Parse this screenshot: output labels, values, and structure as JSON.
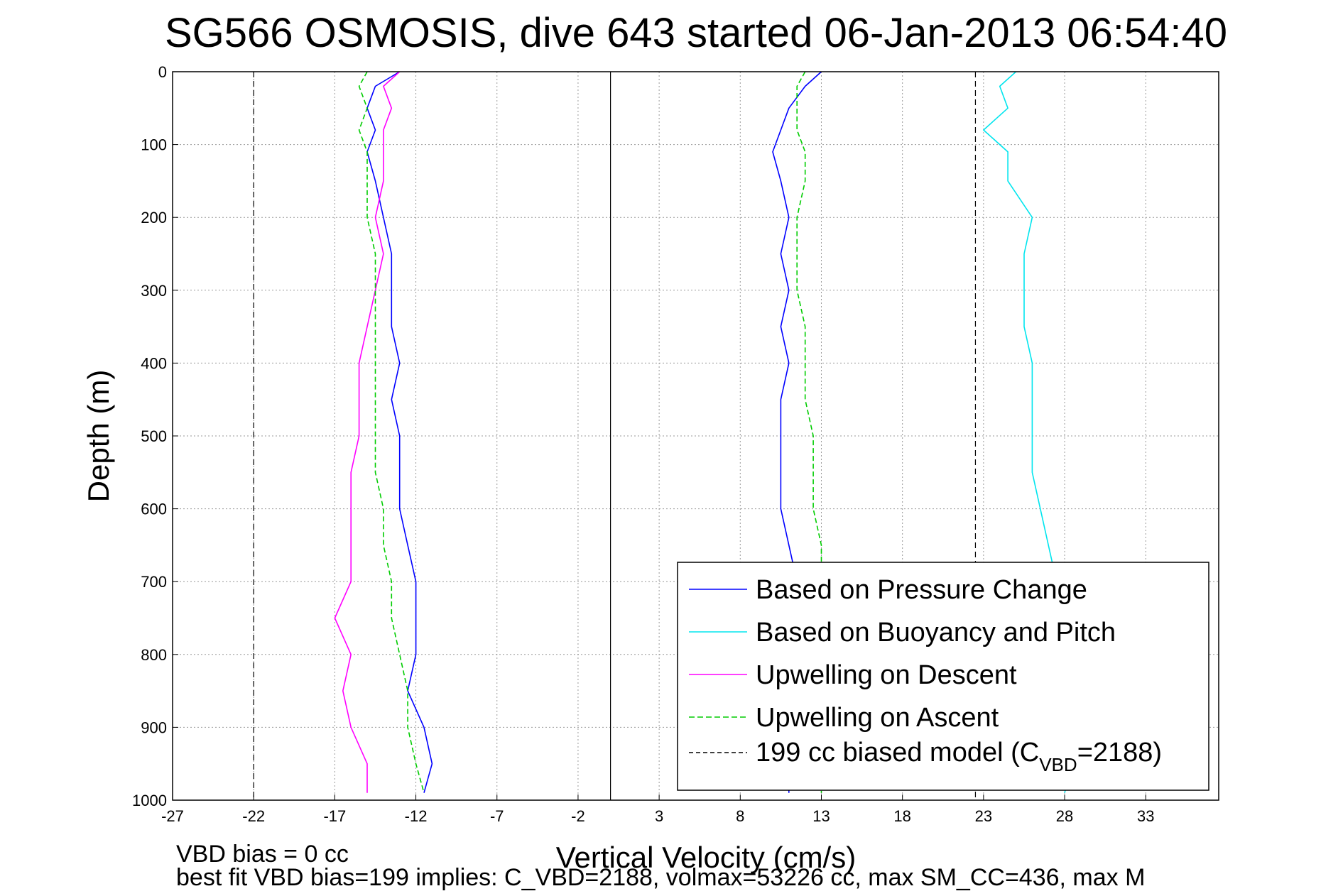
{
  "chart_data": {
    "type": "line",
    "title": "SG566 OSMOSIS, dive 643 started 06-Jan-2013 06:54:40",
    "xlabel": "Vertical Velocity (cm/s)",
    "ylabel": "Depth (m)",
    "xlim": [
      -27,
      37.5
    ],
    "ylim": [
      1000,
      0
    ],
    "y_reversed": true,
    "grid": true,
    "legend_position": "lower-right",
    "xticks": [
      "-27",
      "-22",
      "-17",
      "-12",
      "-7",
      "-2",
      "3",
      "8",
      "13",
      "18",
      "23",
      "28",
      "33"
    ],
    "yticks": [
      "0",
      "100",
      "200",
      "300",
      "400",
      "500",
      "600",
      "700",
      "800",
      "900",
      "1000"
    ],
    "depth": [
      0,
      20,
      50,
      80,
      110,
      150,
      200,
      250,
      300,
      350,
      400,
      450,
      500,
      550,
      600,
      650,
      700,
      750,
      800,
      850,
      900,
      950,
      990
    ],
    "series": [
      {
        "name": "Based on Pressure Change",
        "color": "#0000ff",
        "style": "solid",
        "descent_values": [
          -13,
          -14.5,
          -15,
          -14.5,
          -15,
          -14.5,
          -14,
          -13.5,
          -13.5,
          -13.5,
          -13,
          -13.5,
          -13,
          -13,
          -13,
          -12.5,
          -12,
          -12,
          -12,
          -12.5,
          -11.5,
          -11,
          -11.5
        ],
        "ascent_values": [
          13,
          12,
          11,
          10.5,
          10,
          10.5,
          11,
          10.5,
          11,
          10.5,
          11,
          10.5,
          10.5,
          10.5,
          10.5,
          11,
          11.5,
          11,
          11,
          11,
          11,
          11,
          11
        ]
      },
      {
        "name": "Based on Buoyancy and Pitch",
        "color": "#00e5ee",
        "style": "solid",
        "ascent_values": [
          25,
          24,
          24.5,
          23,
          24.5,
          24.5,
          26,
          25.5,
          25.5,
          25.5,
          26,
          26,
          26,
          26,
          26.5,
          27,
          27.5,
          28,
          28,
          28,
          28.5,
          28.5,
          28
        ]
      },
      {
        "name": "Upwelling on Descent",
        "color": "#ff00ff",
        "style": "solid",
        "values": [
          -13,
          -14,
          -13.5,
          -14,
          -14,
          -14,
          -14.5,
          -14,
          -14.5,
          -15,
          -15.5,
          -15.5,
          -15.5,
          -16,
          -16,
          -16,
          -16,
          -17,
          -16,
          -16.5,
          -16,
          -15,
          -15
        ]
      },
      {
        "name": "Upwelling on Ascent",
        "color": "#00cc00",
        "style": "dashed",
        "values": [
          -15,
          -15.5,
          -15,
          -15.5,
          -15,
          -15,
          -15,
          -14.5,
          -14.5,
          -14.5,
          -14.5,
          -14.5,
          -14.5,
          -14.5,
          -14,
          -14,
          -13.5,
          -13.5,
          -13,
          -12.5,
          -12.5,
          -12,
          -11.5
        ],
        "ascent_values": [
          12,
          11.5,
          11.5,
          11.5,
          12,
          12,
          11.5,
          11.5,
          11.5,
          12,
          12,
          12,
          12.5,
          12.5,
          12.5,
          13,
          13,
          13,
          13,
          13,
          13,
          13,
          13
        ]
      },
      {
        "name": "199 cc biased model (C_VBD=2188)",
        "color": "#000000",
        "style": "dashed",
        "x_lines": [
          -22,
          22.5
        ]
      }
    ],
    "reference_line_x": [
      0
    ]
  },
  "legend": {
    "entries": [
      {
        "label": "Based on Pressure Change",
        "color": "#0000ff",
        "dash": ""
      },
      {
        "label": "Based on Buoyancy and Pitch",
        "color": "#00e5ee",
        "dash": ""
      },
      {
        "label": "Upwelling on Descent",
        "color": "#ff00ff",
        "dash": ""
      },
      {
        "label": "Upwelling on Ascent",
        "color": "#00cc00",
        "dash": "8,4"
      }
    ],
    "model_prefix": "199 cc biased model (C",
    "model_sub": "VBD",
    "model_suffix": "=2188)"
  },
  "footer": {
    "line1": "VBD bias = 0 cc",
    "line2": "best fit VBD bias=199 implies: C_VBD=2188, volmax=53226 cc, max SM_CC=436, max M"
  }
}
